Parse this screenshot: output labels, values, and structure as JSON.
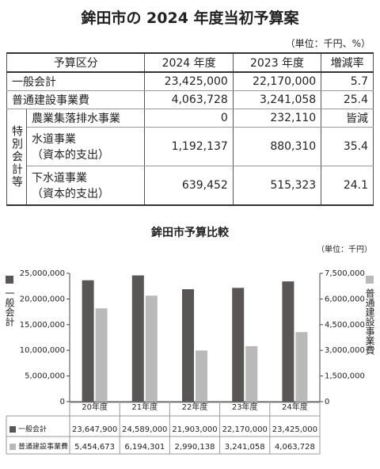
{
  "header": {
    "title": "鉾田市の 2024 年度当初予算案",
    "unit": "（単位：千円、%）"
  },
  "table": {
    "columns": [
      "予算区分",
      "2024 年度",
      "2023 年度",
      "増減率"
    ],
    "rows": [
      [
        "一般会計",
        "23,425,000",
        "22,170,000",
        "5.7"
      ],
      [
        "普通建設事業費",
        "4,063,728",
        "3,241,058",
        "25.4"
      ]
    ],
    "group_label": "特別会計等",
    "group_rows": [
      [
        "農業集落排水事業",
        "0",
        "232,110",
        "皆減"
      ],
      [
        "水道事業\n（資本的支出）",
        "1,192,137",
        "880,310",
        "35.4"
      ],
      [
        "下水道事業\n（資本的支出）",
        "639,452",
        "515,323",
        "24.1"
      ]
    ]
  },
  "chart_data": {
    "type": "bar",
    "title": "鉾田市予算比較",
    "unit": "（単位：千円）",
    "categories": [
      "20年度",
      "21年度",
      "22年度",
      "23年度",
      "24年度"
    ],
    "series": [
      {
        "name": "一般会計",
        "color": "#5a5655",
        "values": [
          23647900,
          24589000,
          21903000,
          22170000,
          23425000
        ],
        "value_labels": [
          "23,647,900",
          "24,589,000",
          "21,903,000",
          "22,170,000",
          "23,425,000"
        ]
      },
      {
        "name": "普通建設事業費",
        "color": "#b9b9b9",
        "axis": "y2",
        "values": [
          5454673,
          6194301,
          2990138,
          3241058,
          4063728
        ],
        "value_labels": [
          "5,454,673",
          "6,194,301",
          "2,990,138",
          "3,241,058",
          "4,063,728"
        ]
      }
    ],
    "ylim": [
      0,
      25000000
    ],
    "yticks": [
      0,
      {
        "value": 5000000,
        "label": "5,000,000"
      },
      {
        "value": 10000000,
        "label": "10,000,000"
      },
      {
        "value": 15000000,
        "label": "15,000,000"
      },
      {
        "value": 20000000,
        "label": "20,000,000"
      },
      {
        "value": 25000000,
        "label": "25,000,000"
      }
    ],
    "y2lim": [
      0,
      7500000
    ],
    "y2ticks": [
      0,
      {
        "value": 1500000,
        "label": "1,500,000"
      },
      {
        "value": 3000000,
        "label": "3,000,000"
      },
      {
        "value": 4500000,
        "label": "4,500,000"
      },
      {
        "value": 6000000,
        "label": "6,000,000"
      },
      {
        "value": 7500000,
        "label": "7,500,000"
      }
    ],
    "grid": false
  }
}
